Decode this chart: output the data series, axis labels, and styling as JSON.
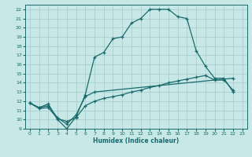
{
  "xlabel": "Humidex (Indice chaleur)",
  "bg_color": "#c8e8e8",
  "line_color": "#1a6b6b",
  "grid_color": "#aacece",
  "xlim": [
    -0.5,
    23.5
  ],
  "ylim": [
    9,
    22.5
  ],
  "xticks": [
    0,
    1,
    2,
    3,
    4,
    5,
    6,
    7,
    8,
    9,
    10,
    11,
    12,
    13,
    14,
    15,
    16,
    17,
    18,
    19,
    20,
    21,
    22,
    23
  ],
  "yticks": [
    9,
    10,
    11,
    12,
    13,
    14,
    15,
    16,
    17,
    18,
    19,
    20,
    21,
    22
  ],
  "line1_x": [
    0,
    1,
    2,
    3,
    4,
    5,
    6,
    7,
    8,
    9,
    10,
    11,
    12,
    13,
    14,
    15,
    16,
    17,
    18,
    19,
    20,
    21,
    22
  ],
  "line1_y": [
    11.8,
    11.3,
    11.7,
    10.0,
    9.0,
    10.3,
    12.7,
    16.8,
    17.3,
    18.8,
    19.0,
    20.5,
    21.0,
    22.0,
    22.0,
    22.0,
    21.2,
    21.0,
    17.5,
    15.8,
    14.5,
    14.5,
    13.0
  ],
  "line2_x": [
    0,
    1,
    2,
    3,
    4,
    5,
    6,
    7,
    22
  ],
  "line2_y": [
    11.8,
    11.3,
    11.5,
    10.2,
    9.5,
    10.5,
    12.5,
    13.0,
    14.5
  ],
  "line3_x": [
    0,
    1,
    2,
    3,
    4,
    5,
    6,
    7,
    8,
    9,
    10,
    11,
    12,
    13,
    14,
    15,
    16,
    17,
    18,
    19,
    20,
    21,
    22
  ],
  "line3_y": [
    11.8,
    11.2,
    11.3,
    10.1,
    9.8,
    10.2,
    11.5,
    12.0,
    12.3,
    12.5,
    12.7,
    13.0,
    13.2,
    13.5,
    13.7,
    14.0,
    14.2,
    14.4,
    14.6,
    14.8,
    14.3,
    14.3,
    13.2
  ]
}
